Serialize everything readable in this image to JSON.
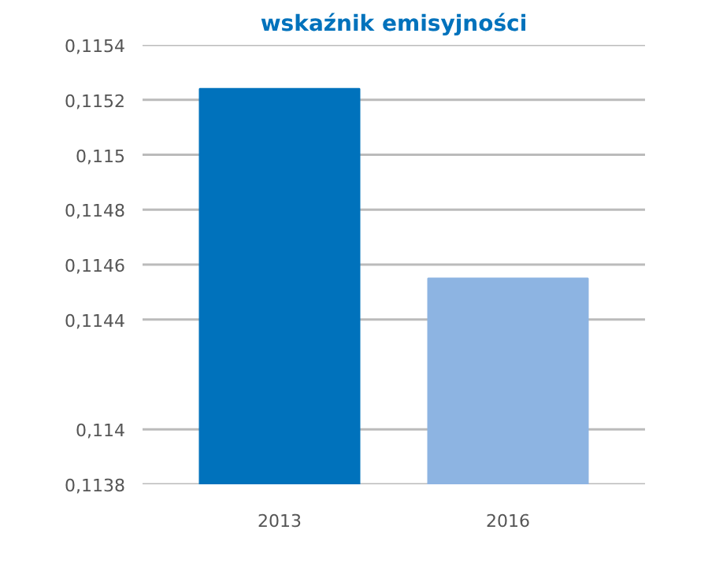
{
  "chart_data": {
    "type": "bar",
    "title": "wskaźnik emisyjności",
    "categories": [
      "2013",
      "2016"
    ],
    "values": [
      0.11524,
      0.11455
    ],
    "colors": [
      "#0072bc",
      "#8db4e2"
    ],
    "ylim": [
      0.1138,
      0.1154
    ],
    "yticks": [
      {
        "value": 0.1138,
        "label": "0,1138"
      },
      {
        "value": 0.114,
        "label": "0,114"
      },
      {
        "value": 0.1144,
        "label": "0,1144"
      },
      {
        "value": 0.1146,
        "label": "0,1146"
      },
      {
        "value": 0.1148,
        "label": "0,1148"
      },
      {
        "value": 0.115,
        "label": "0,115"
      },
      {
        "value": 0.1152,
        "label": "0,1152"
      },
      {
        "value": 0.1154,
        "label": "0,1154"
      }
    ],
    "grid": "y"
  }
}
